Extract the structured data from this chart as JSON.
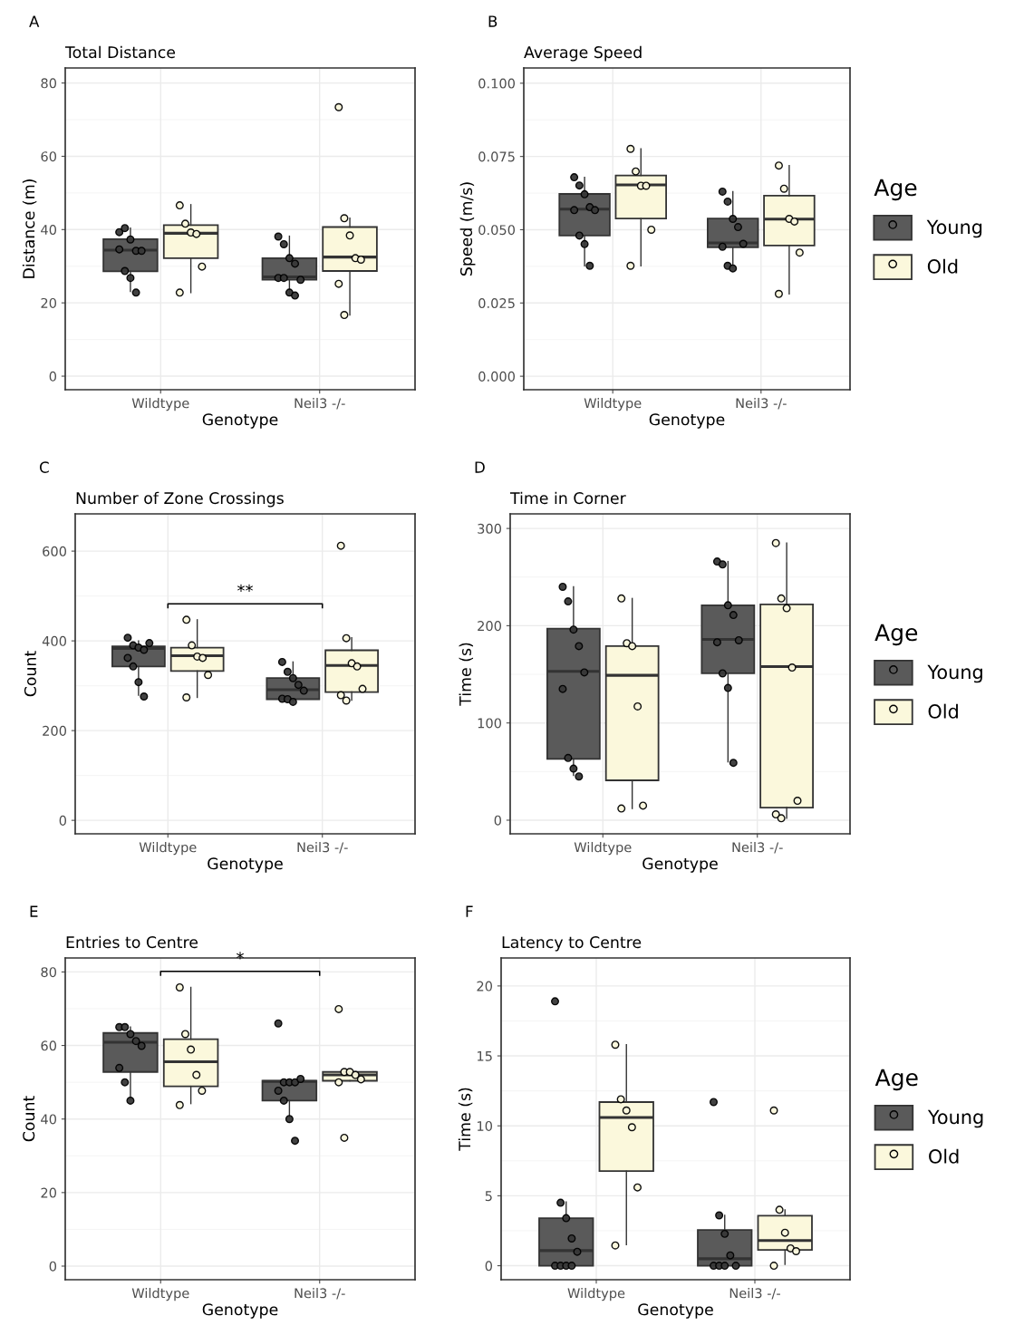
{
  "chart_data": [
    {
      "type": "box",
      "title": "Total Distance",
      "xlabel": "Genotype",
      "ylabel": "Distance (m)",
      "categories": [
        "Wildtype",
        "Neil3 -/-"
      ],
      "ylim": [
        -3.7,
        84.1
      ],
      "yticks": [
        0,
        20,
        40,
        60,
        80
      ],
      "grid": true,
      "marker": "circle",
      "annotations": [
        "A"
      ],
      "series": [
        {
          "color": "#5a5a5a",
          "boxes": [
            {
              "low": 23.1,
              "q1": 28.6,
              "median": 34.4,
              "q3": 37.4,
              "high": 40.4
            },
            {
              "low": 22.0,
              "q1": 26.3,
              "median": 27.1,
              "q3": 32.2,
              "high": 38.2
            }
          ]
        },
        {
          "color": "#fbf8dc",
          "boxes": [
            {
              "low": 22.8,
              "q1": 32.2,
              "median": 39.0,
              "q3": 41.2,
              "high": 46.8
            },
            {
              "low": 16.7,
              "q1": 28.7,
              "median": 32.5,
              "q3": 40.7,
              "high": 43.1
            }
          ]
        },
        {
          "type": "scatter",
          "color": "#383838",
          "x": [
            "Wildtype",
            "Wildtype",
            "Wildtype",
            "Wildtype",
            "Wildtype",
            "Wildtype",
            "Wildtype",
            "Wildtype",
            "Wildtype",
            "Neil3 -/-",
            "Neil3 -/-",
            "Neil3 -/-",
            "Neil3 -/-",
            "Neil3 -/-",
            "Neil3 -/-",
            "Neil3 -/-",
            "Neil3 -/-",
            "Neil3 -/-"
          ],
          "values": [
            39.3,
            40.4,
            37.3,
            34.2,
            34.2,
            34.6,
            28.7,
            26.8,
            22.8,
            38.1,
            36.0,
            32.2,
            30.7,
            26.3,
            26.8,
            26.8,
            22.8,
            22.0
          ]
        },
        {
          "type": "scatter",
          "color": "#fbf8dc",
          "x": [
            "Wildtype",
            "Wildtype",
            "Wildtype",
            "Wildtype",
            "Wildtype",
            "Wildtype",
            "Neil3 -/-",
            "Neil3 -/-",
            "Neil3 -/-",
            "Neil3 -/-",
            "Neil3 -/-",
            "Neil3 -/-",
            "Neil3 -/-"
          ],
          "values": [
            46.6,
            41.6,
            39.2,
            38.8,
            29.9,
            22.8,
            73.4,
            43.1,
            38.4,
            32.2,
            31.8,
            25.2,
            16.7
          ]
        }
      ]
    },
    {
      "type": "box",
      "title": "Average Speed",
      "xlabel": "Genotype",
      "ylabel": "Speed (m/s)",
      "categories": [
        "Wildtype",
        "Neil3 -/-"
      ],
      "ylim": [
        -0.0046,
        0.1052
      ],
      "yticks": [
        {
          "value": 0,
          "label": "0.000"
        },
        {
          "value": 0.025,
          "label": "0.025"
        },
        {
          "value": 0.05,
          "label": "0.050"
        },
        {
          "value": 0.075,
          "label": "0.075"
        },
        {
          "value": 0.1,
          "label": "0.100"
        }
      ],
      "grid": true,
      "marker": "circle",
      "legend": "right",
      "legend_title": "Age",
      "annotations": [
        "B"
      ],
      "series": [
        {
          "name": "Young",
          "color": "#5a5a5a",
          "boxes": [
            {
              "low": 0.0377,
              "q1": 0.048,
              "median": 0.057,
              "q3": 0.0622,
              "high": 0.0679
            },
            {
              "low": 0.037,
              "q1": 0.044,
              "median": 0.0455,
              "q3": 0.0538,
              "high": 0.063
            }
          ]
        },
        {
          "name": "Old",
          "color": "#fbf8dc",
          "boxes": [
            {
              "low": 0.0377,
              "q1": 0.0538,
              "median": 0.0653,
              "q3": 0.0685,
              "high": 0.0776
            },
            {
              "low": 0.0281,
              "q1": 0.0446,
              "median": 0.0536,
              "q3": 0.0616,
              "high": 0.0719
            }
          ]
        },
        {
          "type": "scatter",
          "color": "#383838",
          "x": [
            "Wildtype",
            "Wildtype",
            "Wildtype",
            "Wildtype",
            "Wildtype",
            "Wildtype",
            "Wildtype",
            "Wildtype",
            "Wildtype",
            "Neil3 -/-",
            "Neil3 -/-",
            "Neil3 -/-",
            "Neil3 -/-",
            "Neil3 -/-",
            "Neil3 -/-",
            "Neil3 -/-",
            "Neil3 -/-"
          ],
          "values": [
            0.0679,
            0.0651,
            0.0621,
            0.0577,
            0.0567,
            0.0567,
            0.048,
            0.0451,
            0.0377,
            0.063,
            0.0596,
            0.0537,
            0.0509,
            0.0452,
            0.0442,
            0.0377,
            0.0368
          ]
        },
        {
          "type": "scatter",
          "color": "#fbf8dc",
          "x": [
            "Wildtype",
            "Wildtype",
            "Wildtype",
            "Wildtype",
            "Wildtype",
            "Wildtype",
            "Neil3 -/-",
            "Neil3 -/-",
            "Neil3 -/-",
            "Neil3 -/-",
            "Neil3 -/-",
            "Neil3 -/-"
          ],
          "values": [
            0.0776,
            0.0699,
            0.065,
            0.065,
            0.05,
            0.0377,
            0.0719,
            0.064,
            0.0537,
            0.0528,
            0.0422,
            0.0281
          ]
        }
      ]
    },
    {
      "type": "box",
      "title": "Number of Zone Crossings",
      "xlabel": "Genotype",
      "ylabel": "Count",
      "categories": [
        "Wildtype",
        "Neil3 -/-"
      ],
      "ylim": [
        -30,
        683
      ],
      "yticks": [
        0,
        200,
        400,
        600
      ],
      "grid": true,
      "marker": "circle",
      "annotations": [
        "C",
        "**"
      ],
      "series": [
        {
          "color": "#5a5a5a",
          "boxes": [
            {
              "low": 279,
              "q1": 343,
              "median": 383,
              "q3": 388,
              "high": 400
            },
            {
              "low": 266,
              "q1": 270,
              "median": 291,
              "q3": 317,
              "high": 353
            }
          ]
        },
        {
          "color": "#fbf8dc",
          "boxes": [
            {
              "low": 274,
              "q1": 333,
              "median": 367,
              "q3": 385,
              "high": 447
            },
            {
              "low": 268,
              "q1": 286,
              "median": 345,
              "q3": 379,
              "high": 407
            }
          ]
        },
        {
          "type": "scatter",
          "color": "#383838",
          "x": [
            "Wildtype",
            "Wildtype",
            "Wildtype",
            "Wildtype",
            "Wildtype",
            "Wildtype",
            "Wildtype",
            "Wildtype",
            "Wildtype",
            "Neil3 -/-",
            "Neil3 -/-",
            "Neil3 -/-",
            "Neil3 -/-",
            "Neil3 -/-",
            "Neil3 -/-",
            "Neil3 -/-",
            "Neil3 -/-"
          ],
          "values": [
            407,
            390,
            385,
            380,
            395,
            362,
            343,
            308,
            276,
            353,
            331,
            317,
            302,
            289,
            271,
            270,
            264
          ]
        },
        {
          "type": "scatter",
          "color": "#fbf8dc",
          "x": [
            "Wildtype",
            "Wildtype",
            "Wildtype",
            "Wildtype",
            "Wildtype",
            "Wildtype",
            "Neil3 -/-",
            "Neil3 -/-",
            "Neil3 -/-",
            "Neil3 -/-",
            "Neil3 -/-",
            "Neil3 -/-",
            "Neil3 -/-"
          ],
          "values": [
            447,
            390,
            365,
            362,
            324,
            274,
            612,
            406,
            350,
            343,
            293,
            279,
            267
          ]
        }
      ]
    },
    {
      "type": "box",
      "title": "Time in Corner",
      "xlabel": "Genotype",
      "ylabel": "Time (s)",
      "categories": [
        "Wildtype",
        "Neil3 -/-"
      ],
      "ylim": [
        -14,
        315
      ],
      "yticks": [
        0,
        100,
        200,
        300
      ],
      "grid": true,
      "marker": "circle",
      "legend": "right",
      "legend_title": "Age",
      "annotations": [
        "D"
      ],
      "series": [
        {
          "name": "Young",
          "color": "#5a5a5a",
          "boxes": [
            {
              "low": 46,
              "q1": 63,
              "median": 153,
              "q3": 197,
              "high": 240
            },
            {
              "low": 60,
              "q1": 151,
              "median": 186,
              "q3": 221,
              "high": 266
            }
          ]
        },
        {
          "name": "Old",
          "color": "#fbf8dc",
          "boxes": [
            {
              "low": 12,
              "q1": 41,
              "median": 149,
              "q3": 179,
              "high": 228
            },
            {
              "low": 2,
              "q1": 13,
              "median": 158,
              "q3": 222,
              "high": 285
            }
          ]
        },
        {
          "type": "scatter",
          "color": "#383838",
          "x": [
            "Wildtype",
            "Wildtype",
            "Wildtype",
            "Wildtype",
            "Wildtype",
            "Wildtype",
            "Wildtype",
            "Wildtype",
            "Wildtype",
            "Neil3 -/-",
            "Neil3 -/-",
            "Neil3 -/-",
            "Neil3 -/-",
            "Neil3 -/-",
            "Neil3 -/-",
            "Neil3 -/-",
            "Neil3 -/-",
            "Neil3 -/-"
          ],
          "values": [
            240,
            225,
            196,
            179,
            152,
            135,
            64,
            53,
            45,
            266,
            263,
            221,
            211,
            185,
            183,
            151,
            136,
            59
          ]
        },
        {
          "type": "scatter",
          "color": "#fbf8dc",
          "x": [
            "Wildtype",
            "Wildtype",
            "Wildtype",
            "Wildtype",
            "Wildtype",
            "Wildtype",
            "Neil3 -/-",
            "Neil3 -/-",
            "Neil3 -/-",
            "Neil3 -/-",
            "Neil3 -/-",
            "Neil3 -/-",
            "Neil3 -/-"
          ],
          "values": [
            228,
            182,
            179,
            117,
            15,
            12,
            285,
            228,
            218,
            157,
            20,
            6,
            2
          ]
        }
      ]
    },
    {
      "type": "box",
      "title": "Entries to Centre",
      "xlabel": "Genotype",
      "ylabel": "Count",
      "categories": [
        "Wildtype",
        "Neil3 -/-"
      ],
      "ylim": [
        -3.7,
        83.8
      ],
      "yticks": [
        0,
        20,
        40,
        60,
        80
      ],
      "grid": true,
      "marker": "circle",
      "annotations": [
        "E",
        "*"
      ],
      "series": [
        {
          "color": "#5a5a5a",
          "boxes": [
            {
              "low": 45.4,
              "q1": 52.8,
              "median": 60.9,
              "q3": 63.4,
              "high": 65.0
            },
            {
              "low": 40.5,
              "q1": 45.0,
              "median": 50.2,
              "q3": 50.4,
              "high": 50.4
            }
          ]
        },
        {
          "color": "#fbf8dc",
          "boxes": [
            {
              "low": 44.2,
              "q1": 48.9,
              "median": 55.6,
              "q3": 61.7,
              "high": 75.8
            },
            {
              "low": 50.4,
              "q1": 50.4,
              "median": 52.0,
              "q3": 52.8,
              "high": 52.8
            }
          ]
        },
        {
          "type": "scatter",
          "color": "#383838",
          "x": [
            "Wildtype",
            "Wildtype",
            "Wildtype",
            "Wildtype",
            "Wildtype",
            "Wildtype",
            "Wildtype",
            "Wildtype",
            "Neil3 -/-",
            "Neil3 -/-",
            "Neil3 -/-",
            "Neil3 -/-",
            "Neil3 -/-",
            "Neil3 -/-",
            "Neil3 -/-",
            "Neil3 -/-",
            "Neil3 -/-"
          ],
          "values": [
            65.0,
            65.0,
            63.1,
            61.2,
            59.9,
            53.9,
            50.0,
            45.0,
            66.0,
            50.0,
            50.0,
            50.0,
            50.9,
            47.7,
            45.0,
            40.0,
            34.1
          ]
        },
        {
          "type": "scatter",
          "color": "#fbf8dc",
          "x": [
            "Wildtype",
            "Wildtype",
            "Wildtype",
            "Wildtype",
            "Wildtype",
            "Wildtype",
            "Neil3 -/-",
            "Neil3 -/-",
            "Neil3 -/-",
            "Neil3 -/-",
            "Neil3 -/-",
            "Neil3 -/-",
            "Neil3 -/-"
          ],
          "values": [
            75.8,
            63.1,
            58.9,
            52.0,
            47.7,
            43.8,
            69.9,
            52.8,
            52.8,
            52.0,
            50.8,
            50.0,
            34.9
          ]
        }
      ]
    },
    {
      "type": "box",
      "title": "Latency to Centre",
      "xlabel": "Genotype",
      "ylabel": "Time (s)",
      "categories": [
        "Wildtype",
        "Neil3 -/-"
      ],
      "ylim": [
        -1.0,
        22.0
      ],
      "yticks": [
        0,
        5,
        10,
        15,
        20
      ],
      "grid": true,
      "marker": "circle",
      "legend": "right",
      "legend_title": "Age",
      "annotations": [
        "F"
      ],
      "series": [
        {
          "name": "Young",
          "color": "#5a5a5a",
          "boxes": [
            {
              "low": 0,
              "q1": 0,
              "median": 1.08,
              "q3": 3.4,
              "high": 4.56
            },
            {
              "low": 0,
              "q1": 0,
              "median": 0.5,
              "q3": 2.56,
              "high": 3.6
            }
          ]
        },
        {
          "name": "Old",
          "color": "#fbf8dc",
          "boxes": [
            {
              "low": 1.5,
              "q1": 6.77,
              "median": 10.6,
              "q3": 11.7,
              "high": 15.8
            },
            {
              "low": 0.1,
              "q1": 1.13,
              "median": 1.8,
              "q3": 3.58,
              "high": 4.0
            }
          ]
        },
        {
          "type": "scatter",
          "color": "#383838",
          "x": [
            "Wildtype",
            "Wildtype",
            "Wildtype",
            "Wildtype",
            "Wildtype",
            "Wildtype",
            "Wildtype",
            "Wildtype",
            "Wildtype",
            "Neil3 -/-",
            "Neil3 -/-",
            "Neil3 -/-",
            "Neil3 -/-",
            "Neil3 -/-",
            "Neil3 -/-",
            "Neil3 -/-",
            "Neil3 -/-"
          ],
          "values": [
            18.9,
            4.5,
            3.4,
            1.95,
            1.0,
            0,
            0,
            0,
            0,
            11.7,
            3.6,
            2.28,
            0.74,
            0,
            0,
            0,
            0
          ]
        },
        {
          "type": "scatter",
          "color": "#fbf8dc",
          "x": [
            "Wildtype",
            "Wildtype",
            "Wildtype",
            "Wildtype",
            "Wildtype",
            "Wildtype",
            "Neil3 -/-",
            "Neil3 -/-",
            "Neil3 -/-",
            "Neil3 -/-",
            "Neil3 -/-",
            "Neil3 -/-"
          ],
          "values": [
            15.8,
            11.9,
            11.1,
            9.9,
            5.6,
            1.45,
            11.1,
            4.0,
            2.36,
            1.24,
            1.04,
            0
          ]
        }
      ]
    }
  ]
}
